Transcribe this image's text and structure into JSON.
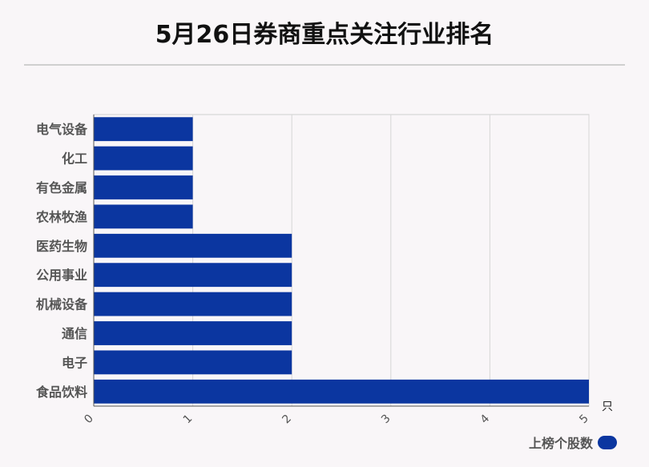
{
  "chart_data": {
    "type": "bar",
    "orientation": "horizontal",
    "title": "5月26日券商重点关注行业排名",
    "categories": [
      "电气设备",
      "化工",
      "有色金属",
      "农林牧渔",
      "医药生物",
      "公用事业",
      "机械设备",
      "通信",
      "电子",
      "食品饮料"
    ],
    "series": [
      {
        "name": "上榜个股数",
        "values": [
          1,
          1,
          1,
          1,
          2,
          2,
          2,
          2,
          2,
          5
        ],
        "color": "#0b36a0"
      }
    ],
    "xlim": [
      0,
      5
    ],
    "xticks": [
      "0",
      "1",
      "2",
      "3",
      "4",
      "5"
    ],
    "unit": "只",
    "grid": true,
    "legend_position": "bottom-right"
  }
}
